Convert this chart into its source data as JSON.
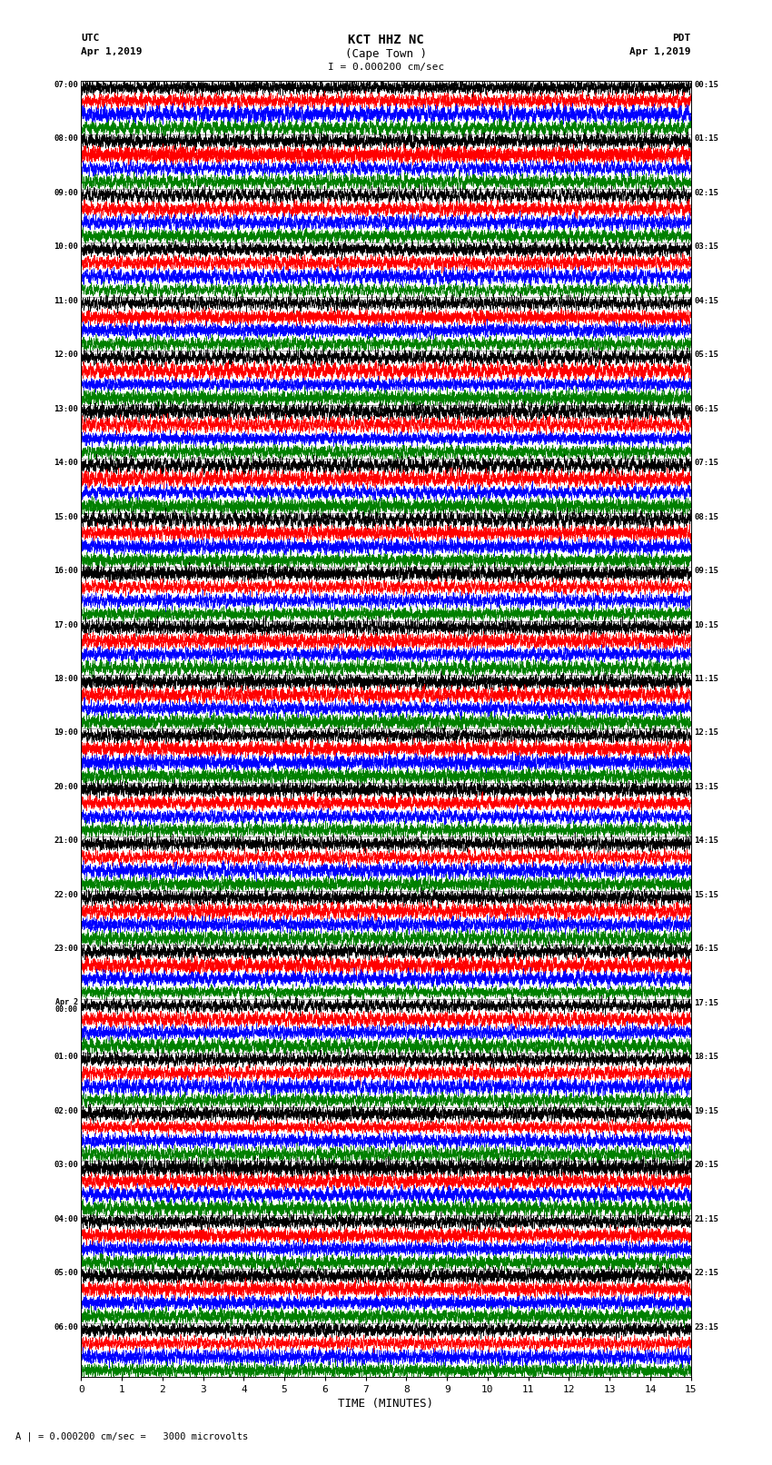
{
  "title_line1": "KCT HHZ NC",
  "title_line2": "(Cape Town )",
  "scale_text": "I = 0.000200 cm/sec",
  "bottom_note": "A | = 0.000200 cm/sec =   3000 microvolts",
  "utc_label": "UTC",
  "pdt_label": "PDT",
  "date_left": "Apr 1,2019",
  "date_right": "Apr 1,2019",
  "xlabel": "TIME (MINUTES)",
  "left_times": [
    "07:00",
    "08:00",
    "09:00",
    "10:00",
    "11:00",
    "12:00",
    "13:00",
    "14:00",
    "15:00",
    "16:00",
    "17:00",
    "18:00",
    "19:00",
    "20:00",
    "21:00",
    "22:00",
    "23:00",
    "Apr 2\n00:00",
    "01:00",
    "02:00",
    "03:00",
    "04:00",
    "05:00",
    "06:00"
  ],
  "right_times": [
    "00:15",
    "01:15",
    "02:15",
    "03:15",
    "04:15",
    "05:15",
    "06:15",
    "07:15",
    "08:15",
    "09:15",
    "10:15",
    "11:15",
    "12:15",
    "13:15",
    "14:15",
    "15:15",
    "16:15",
    "17:15",
    "18:15",
    "19:15",
    "20:15",
    "21:15",
    "22:15",
    "23:15"
  ],
  "n_rows": 24,
  "traces_per_row": 4,
  "colors": [
    "black",
    "red",
    "blue",
    "green"
  ],
  "fig_width": 8.5,
  "fig_height": 16.13,
  "bg_color": "white",
  "plot_bg": "white",
  "xmin": 0,
  "xmax": 15,
  "xticks": [
    0,
    1,
    2,
    3,
    4,
    5,
    6,
    7,
    8,
    9,
    10,
    11,
    12,
    13,
    14,
    15
  ],
  "dpi": 100
}
